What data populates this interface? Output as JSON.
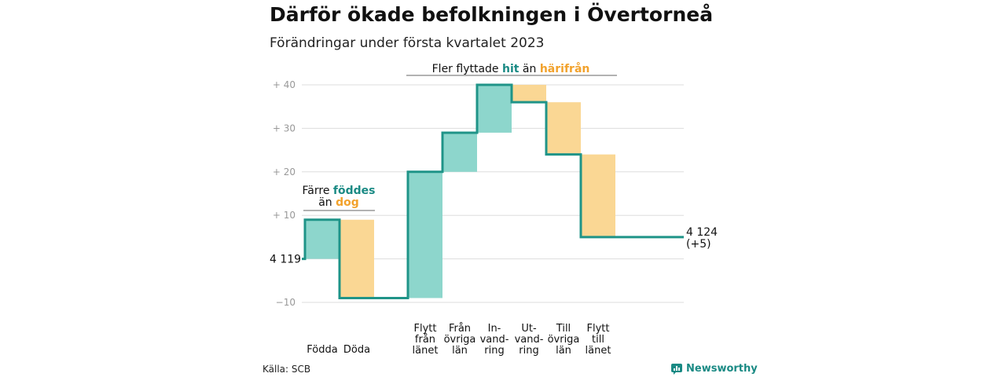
{
  "header": {
    "title": "Därför ökade befolkningen i Övertorneå",
    "subtitle": "Förändringar under första kvartalet 2023"
  },
  "footer": {
    "source": "Källa: SCB",
    "brand": "Newsworthy"
  },
  "colors": {
    "increase": "#8dd6cc",
    "decrease": "#fad794",
    "line": "#1f9488",
    "teal_text": "#1a8a84",
    "orange_text": "#f2a22c",
    "grid": "#dddddd",
    "tick_text": "#999999"
  },
  "chart_data": {
    "type": "waterfall",
    "start_value": 4119,
    "start_label": "4 119",
    "end_label": [
      "4 124",
      "(+5)"
    ],
    "ylim": [
      -10,
      40
    ],
    "yticks": [
      {
        "value": 40,
        "label": "+ 40"
      },
      {
        "value": 30,
        "label": "+ 30"
      },
      {
        "value": 20,
        "label": "+ 20"
      },
      {
        "value": 10,
        "label": "+ 10"
      },
      {
        "value": -10,
        "label": "−10"
      }
    ],
    "steps": [
      {
        "label": [
          "Födda"
        ],
        "change": 9,
        "kind": "increase"
      },
      {
        "label": [
          "Döda"
        ],
        "change": -18,
        "kind": "decrease"
      },
      {
        "label": [
          "Flytt",
          "från",
          "länet"
        ],
        "change": 29,
        "kind": "increase"
      },
      {
        "label": [
          "Från",
          "övriga",
          "län"
        ],
        "change": 9,
        "kind": "increase"
      },
      {
        "label": [
          "In-",
          "vand-",
          "ring"
        ],
        "change": 11,
        "kind": "increase"
      },
      {
        "label": [
          "Ut-",
          "vand-",
          "ring"
        ],
        "change": -4,
        "kind": "decrease"
      },
      {
        "label": [
          "Till",
          "övriga",
          "län"
        ],
        "change": -12,
        "kind": "decrease"
      },
      {
        "label": [
          "Flytt",
          "till",
          "länet"
        ],
        "change": -19,
        "kind": "decrease"
      }
    ],
    "end_change": 5,
    "annotations": [
      {
        "lines": [
          [
            {
              "text": "Färre ",
              "style": "normal"
            },
            {
              "text": "föddes",
              "style": "teal"
            }
          ],
          [
            {
              "text": "än ",
              "style": "normal"
            },
            {
              "text": "dog",
              "style": "orange"
            }
          ]
        ],
        "span": [
          0,
          1
        ]
      },
      {
        "lines": [
          [
            {
              "text": "Fler flyttade ",
              "style": "normal"
            },
            {
              "text": "hit",
              "style": "teal"
            },
            {
              "text": " än ",
              "style": "normal"
            },
            {
              "text": "härifrån",
              "style": "orange"
            }
          ]
        ],
        "span": [
          2,
          7
        ]
      }
    ]
  }
}
